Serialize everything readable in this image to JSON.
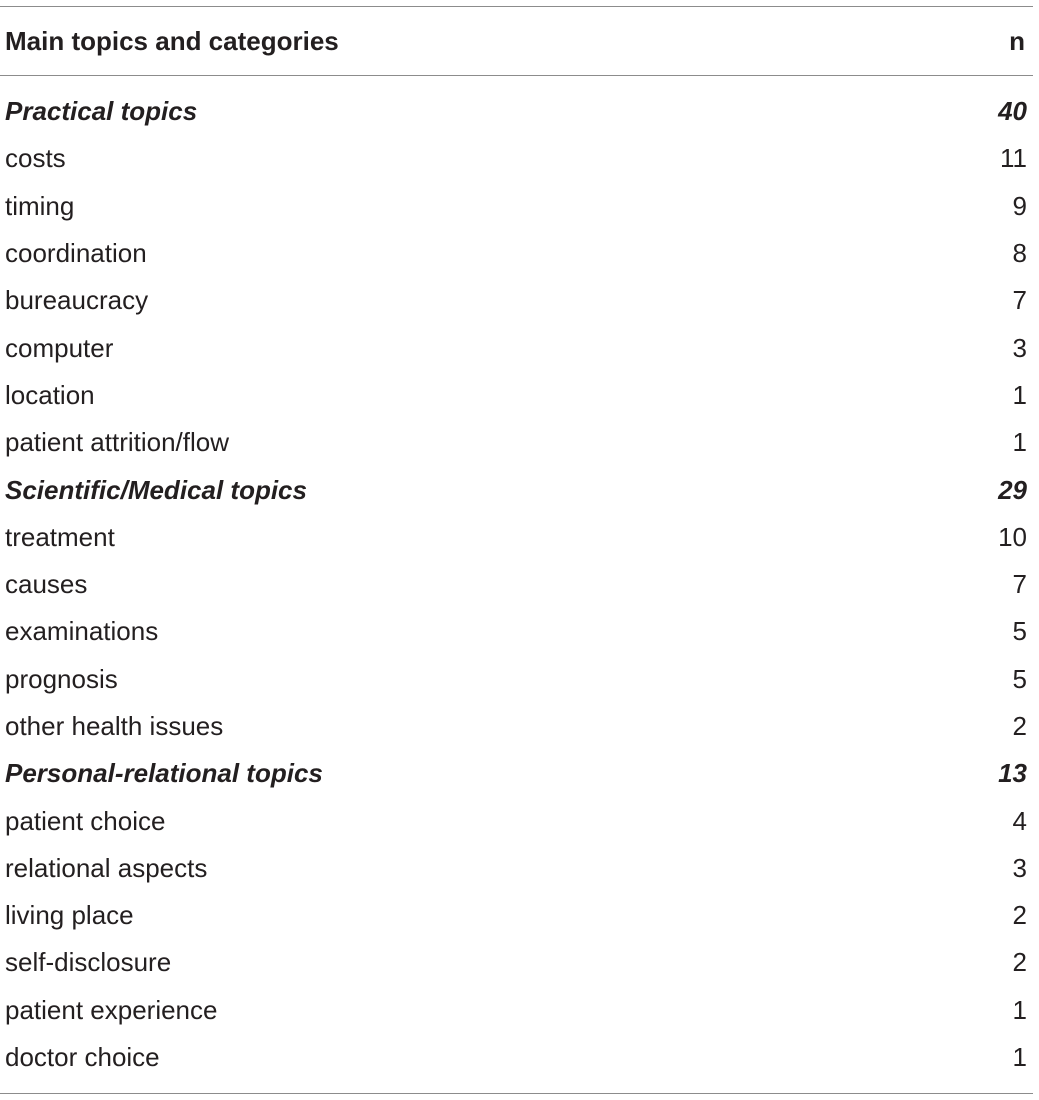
{
  "header": {
    "topic_label": "Main topics and categories",
    "n_label": "n"
  },
  "sections": [
    {
      "title": "Practical topics",
      "n": "40",
      "items": [
        {
          "label": "costs",
          "n": "11"
        },
        {
          "label": "timing",
          "n": "9"
        },
        {
          "label": "coordination",
          "n": "8"
        },
        {
          "label": "bureaucracy",
          "n": "7"
        },
        {
          "label": "computer",
          "n": "3"
        },
        {
          "label": "location",
          "n": "1"
        },
        {
          "label": "patient attrition/flow",
          "n": "1"
        }
      ]
    },
    {
      "title": "Scientific/Medical topics",
      "n": "29",
      "items": [
        {
          "label": "treatment",
          "n": "10"
        },
        {
          "label": "causes",
          "n": "7"
        },
        {
          "label": "examinations",
          "n": "5"
        },
        {
          "label": "prognosis",
          "n": "5"
        },
        {
          "label": "other health issues",
          "n": "2"
        }
      ]
    },
    {
      "title": "Personal-relational topics",
      "n": "13",
      "items": [
        {
          "label": "patient choice",
          "n": "4"
        },
        {
          "label": "relational aspects",
          "n": "3"
        },
        {
          "label": "living place",
          "n": "2"
        },
        {
          "label": "self-disclosure",
          "n": "2"
        },
        {
          "label": "patient experience",
          "n": "1"
        },
        {
          "label": "doctor choice",
          "n": "1"
        }
      ]
    }
  ]
}
